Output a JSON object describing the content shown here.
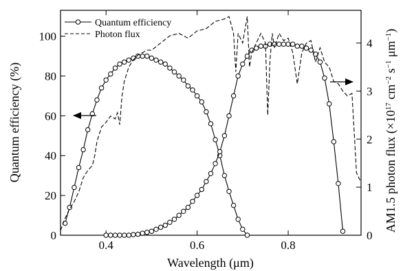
{
  "chart_data": {
    "type": "line",
    "xlabel": "Wavelength (μm)",
    "ylabel_left": "Quantum efficiency (%)",
    "ylabel_right_parts": [
      "AM1.5 photon flux (×10",
      "17",
      " cm",
      "−2",
      " s",
      "−1",
      " μm",
      "−1",
      ")"
    ],
    "xlim": [
      0.3,
      0.96
    ],
    "ylim_left": [
      0,
      113
    ],
    "ylim_right": [
      0,
      4.68
    ],
    "x_ticks": [
      0.4,
      0.6,
      0.8
    ],
    "x_tick_labels": [
      "0.4",
      "0.6",
      "0.8"
    ],
    "y_left_ticks": [
      0,
      20,
      40,
      60,
      80,
      100
    ],
    "y_left_tick_labels": [
      "0",
      "20",
      "40",
      "60",
      "80",
      "100"
    ],
    "y_right_ticks": [
      0,
      1,
      2,
      3,
      4
    ],
    "y_right_tick_labels": [
      "0",
      "1",
      "2",
      "3",
      "4"
    ],
    "legend": {
      "position": "top-left",
      "entries": [
        {
          "label": "Quantum efficiency",
          "style": "solid-circle"
        },
        {
          "label": "Photon flux",
          "style": "dashed"
        }
      ]
    },
    "series": [
      {
        "name": "Quantum efficiency",
        "axis": "left",
        "style": "solid-circle",
        "x": [
          0.31,
          0.32,
          0.33,
          0.34,
          0.35,
          0.36,
          0.37,
          0.38,
          0.39,
          0.4,
          0.41,
          0.42,
          0.43,
          0.44,
          0.45,
          0.46,
          0.47,
          0.48,
          0.49,
          0.5,
          0.51,
          0.52,
          0.53,
          0.54,
          0.55,
          0.56,
          0.57,
          0.58,
          0.59,
          0.6,
          0.61,
          0.62,
          0.63,
          0.64,
          0.65,
          0.66,
          0.67,
          0.68,
          0.69,
          0.7,
          0.71
        ],
        "values": [
          6,
          14,
          24,
          34,
          43,
          53,
          61,
          68,
          74,
          78,
          81,
          84,
          86,
          87,
          88,
          89,
          90,
          90,
          90,
          89,
          88,
          87,
          86,
          84,
          82,
          80,
          78,
          75,
          73,
          70,
          67,
          62,
          56,
          48,
          40,
          30,
          22,
          15,
          8,
          3,
          0
        ]
      },
      {
        "name": "Quantum efficiency",
        "axis": "left",
        "style": "solid-circle",
        "x": [
          0.4,
          0.41,
          0.42,
          0.43,
          0.44,
          0.45,
          0.46,
          0.47,
          0.48,
          0.49,
          0.5,
          0.51,
          0.52,
          0.53,
          0.54,
          0.55,
          0.56,
          0.57,
          0.58,
          0.59,
          0.6,
          0.61,
          0.62,
          0.63,
          0.64,
          0.65,
          0.66,
          0.67,
          0.68,
          0.69,
          0.7,
          0.71,
          0.72,
          0.73,
          0.74,
          0.75,
          0.76,
          0.77,
          0.78,
          0.79,
          0.8,
          0.81,
          0.82,
          0.83,
          0.84,
          0.85,
          0.86,
          0.87,
          0.88,
          0.89,
          0.9,
          0.91,
          0.92
        ],
        "values": [
          0,
          0,
          0,
          0,
          0,
          0,
          0.3,
          0.5,
          1,
          1.5,
          2,
          3,
          4,
          5,
          6.5,
          8,
          10,
          12,
          14,
          17,
          20,
          23,
          27,
          31,
          36,
          42,
          50,
          60,
          70,
          80,
          86,
          90,
          93,
          94,
          95,
          95,
          96,
          96,
          96,
          96,
          96,
          96,
          95,
          95,
          94,
          93,
          91,
          87,
          79,
          66,
          47,
          26,
          2
        ]
      },
      {
        "name": "Photon flux",
        "axis": "right",
        "style": "dashed",
        "x": [
          0.3,
          0.31,
          0.32,
          0.33,
          0.34,
          0.35,
          0.36,
          0.37,
          0.375,
          0.38,
          0.39,
          0.4,
          0.41,
          0.42,
          0.425,
          0.43,
          0.435,
          0.44,
          0.45,
          0.46,
          0.47,
          0.48,
          0.49,
          0.5,
          0.52,
          0.54,
          0.56,
          0.58,
          0.6,
          0.62,
          0.64,
          0.66,
          0.67,
          0.68,
          0.685,
          0.69,
          0.7,
          0.71,
          0.715,
          0.72,
          0.73,
          0.74,
          0.75,
          0.755,
          0.76,
          0.765,
          0.77,
          0.78,
          0.79,
          0.8,
          0.81,
          0.82,
          0.83,
          0.84,
          0.85,
          0.86,
          0.87,
          0.88,
          0.89,
          0.9,
          0.91,
          0.92,
          0.93,
          0.94,
          0.95,
          0.96
        ],
        "values": [
          0.1,
          0.35,
          0.55,
          0.7,
          0.9,
          1.2,
          1.35,
          1.45,
          1.65,
          1.95,
          2.25,
          2.35,
          2.48,
          2.42,
          2.55,
          2.3,
          2.9,
          3.2,
          3.5,
          3.65,
          3.75,
          3.8,
          3.85,
          3.85,
          4.0,
          4.15,
          4.2,
          4.1,
          4.25,
          4.3,
          4.45,
          4.5,
          4.55,
          4.2,
          3.4,
          4.2,
          4.0,
          4.55,
          3.5,
          3.8,
          4.0,
          4.2,
          4.0,
          2.5,
          3.65,
          4.2,
          3.9,
          4.2,
          4.05,
          4.1,
          3.8,
          3.15,
          3.8,
          4.0,
          4.05,
          3.6,
          3.9,
          3.6,
          3.5,
          3.2,
          3.15,
          3.0,
          2.9,
          2.95,
          1.3,
          1.1
        ]
      }
    ],
    "annotations": [
      {
        "type": "arrow",
        "direction": "left",
        "axis": "left"
      },
      {
        "type": "arrow",
        "direction": "right",
        "axis": "right"
      }
    ]
  }
}
